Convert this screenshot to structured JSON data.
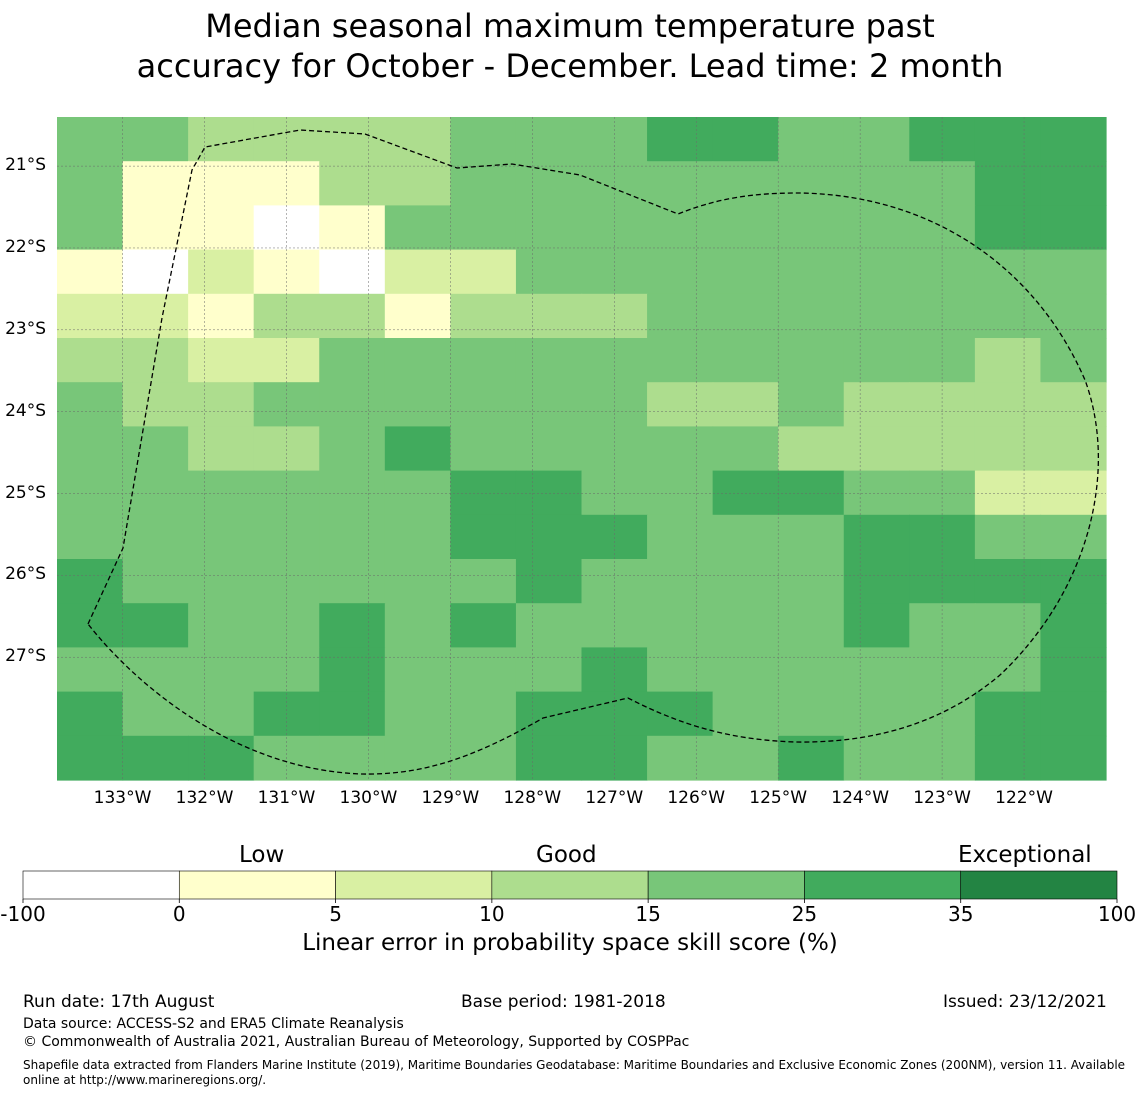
{
  "title": {
    "line1": "Median seasonal maximum temperature past",
    "line2": "accuracy for October - December. Lead time: 2 month"
  },
  "map": {
    "lat_labels": [
      "21°S",
      "22°S",
      "23°S",
      "24°S",
      "25°S",
      "26°S",
      "27°S"
    ],
    "lon_labels": [
      "133°W",
      "132°W",
      "131°W",
      "130°W",
      "129°W",
      "128°W",
      "127°W",
      "126°W",
      "125°W",
      "124°W",
      "123°W",
      "122°W"
    ],
    "lon_range": [
      -133.8,
      -121.0
    ],
    "lat_range": [
      -28.5,
      -20.4
    ],
    "skill_grid_note_rows": 15,
    "skill_grid": [
      [
        15,
        15,
        10,
        10,
        10,
        10,
        20,
        20,
        20,
        30,
        30,
        20,
        20,
        30,
        30,
        30
      ],
      [
        15,
        4,
        4,
        4,
        10,
        10,
        20,
        20,
        20,
        20,
        20,
        20,
        20,
        20,
        30,
        30
      ],
      [
        15,
        4,
        4,
        -5,
        4,
        20,
        20,
        20,
        20,
        20,
        20,
        20,
        20,
        20,
        30,
        30
      ],
      [
        4,
        -5,
        7,
        4,
        -5,
        7,
        7,
        20,
        20,
        20,
        20,
        20,
        20,
        20,
        20,
        20
      ],
      [
        7,
        7,
        4,
        12,
        12,
        4,
        12,
        12,
        12,
        20,
        20,
        20,
        20,
        20,
        20,
        20
      ],
      [
        12,
        12,
        7,
        7,
        20,
        20,
        20,
        20,
        20,
        20,
        20,
        20,
        20,
        20,
        12,
        20
      ],
      [
        20,
        12,
        12,
        20,
        20,
        20,
        20,
        20,
        20,
        12,
        12,
        20,
        12,
        12,
        12,
        12
      ],
      [
        20,
        20,
        12,
        12,
        20,
        30,
        20,
        20,
        20,
        20,
        20,
        12,
        12,
        12,
        12,
        12
      ],
      [
        20,
        20,
        20,
        20,
        20,
        20,
        30,
        30,
        20,
        20,
        30,
        30,
        20,
        20,
        7,
        7
      ],
      [
        20,
        20,
        20,
        20,
        20,
        20,
        30,
        30,
        30,
        20,
        20,
        20,
        30,
        30,
        20,
        20
      ],
      [
        30,
        20,
        20,
        20,
        20,
        20,
        20,
        30,
        20,
        20,
        20,
        20,
        30,
        30,
        30,
        30
      ],
      [
        30,
        30,
        20,
        20,
        30,
        20,
        30,
        20,
        20,
        20,
        20,
        20,
        30,
        20,
        20,
        30
      ],
      [
        20,
        20,
        20,
        20,
        30,
        20,
        20,
        20,
        30,
        20,
        20,
        20,
        20,
        20,
        20,
        30
      ],
      [
        30,
        20,
        20,
        30,
        30,
        20,
        20,
        30,
        30,
        30,
        20,
        20,
        20,
        20,
        30,
        30
      ],
      [
        30,
        30,
        30,
        20,
        20,
        20,
        20,
        30,
        30,
        20,
        20,
        30,
        20,
        20,
        30,
        30
      ]
    ]
  },
  "colorbar": {
    "categories": [
      "Low",
      "Good",
      "Exceptional"
    ],
    "ticks": [
      "-100",
      "0",
      "5",
      "10",
      "15",
      "25",
      "35",
      "100"
    ],
    "bins": [
      [
        -100,
        0
      ],
      [
        0,
        5
      ],
      [
        5,
        10
      ],
      [
        10,
        15
      ],
      [
        15,
        25
      ],
      [
        25,
        35
      ],
      [
        35,
        100
      ]
    ],
    "colors": [
      "#ffffff",
      "#ffffcc",
      "#d9f0a3",
      "#addd8e",
      "#78c679",
      "#41ab5d",
      "#238443"
    ],
    "label": "Linear error in probability space skill score (%)"
  },
  "footer": {
    "run_date": "Run date: 17th August",
    "base_period": "Base period: 1981-2018",
    "issued": "Issued: 23/12/2021",
    "data_source": "Data source: ACCESS-S2 and ERA5 Climate Reanalysis",
    "copyright": "© Commonwealth of Australia 2021, Australian Bureau of Meteorology, Supported by COSPPac",
    "shapefile_line1": "Shapefile data extracted from Flanders Marine Institute (2019), Maritime Boundaries Geodatabase: Maritime Boundaries and Exclusive Economic Zones (200NM), version 11. Available",
    "shapefile_line2": "online at http://www.marineregions.org/."
  }
}
